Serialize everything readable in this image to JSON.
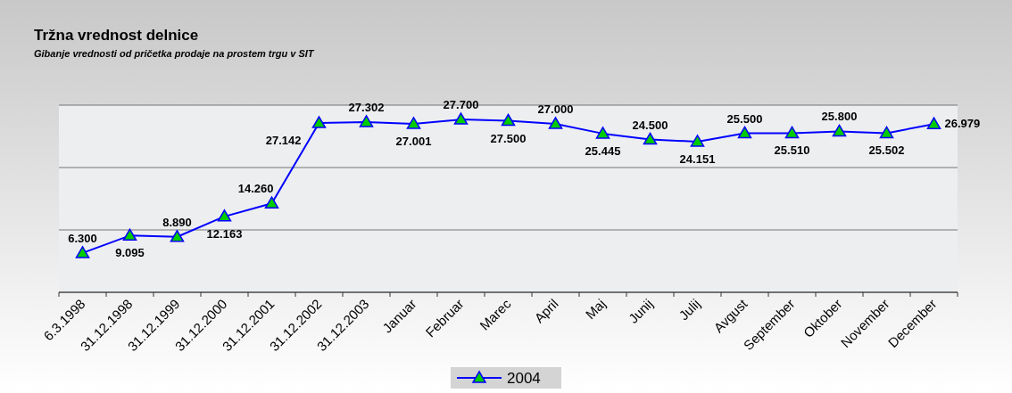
{
  "chart_data": {
    "type": "line",
    "title": "Tržna vrednost delnice",
    "subtitle": "Gibanje vrednosti od pričetka prodaje na prostem trgu v SIT",
    "categories": [
      "6.3.1998",
      "31.12.1998",
      "31.12.1999",
      "31.12.2000",
      "31.12.2001",
      "31.12.2002",
      "31.12.2003",
      "Januar",
      "Februar",
      "Marec",
      "April",
      "Maj",
      "Junij",
      "Julij",
      "Avgust",
      "September",
      "Oktober",
      "November",
      "December"
    ],
    "series": [
      {
        "name": "2004",
        "color": "#0000ff",
        "values": [
          6300,
          9095,
          8890,
          12163,
          14260,
          27142,
          27302,
          27001,
          27700,
          27500,
          27000,
          25445,
          24500,
          24151,
          25500,
          25510,
          25800,
          25502,
          26979
        ],
        "value_labels": [
          "6.300",
          "9.095",
          "8.890",
          "12.163",
          "14.260",
          "27.142",
          "27.302",
          "27.001",
          "27.700",
          "27.500",
          "27.000",
          "25.445",
          "24.500",
          "24.151",
          "25.500",
          "25.510",
          "25.800",
          "25.502",
          "26.979"
        ]
      }
    ],
    "ylim": [
      0,
      30000
    ],
    "yticks": [
      {
        "value": 0,
        "label": null
      },
      {
        "value": 10000,
        "label": null
      },
      {
        "value": 20000,
        "label": null
      },
      {
        "value": 30000,
        "label": null
      }
    ],
    "tick_labels": "x",
    "grid": "y",
    "legend": "bottom",
    "marker": "triangle",
    "line_style": "solid"
  }
}
